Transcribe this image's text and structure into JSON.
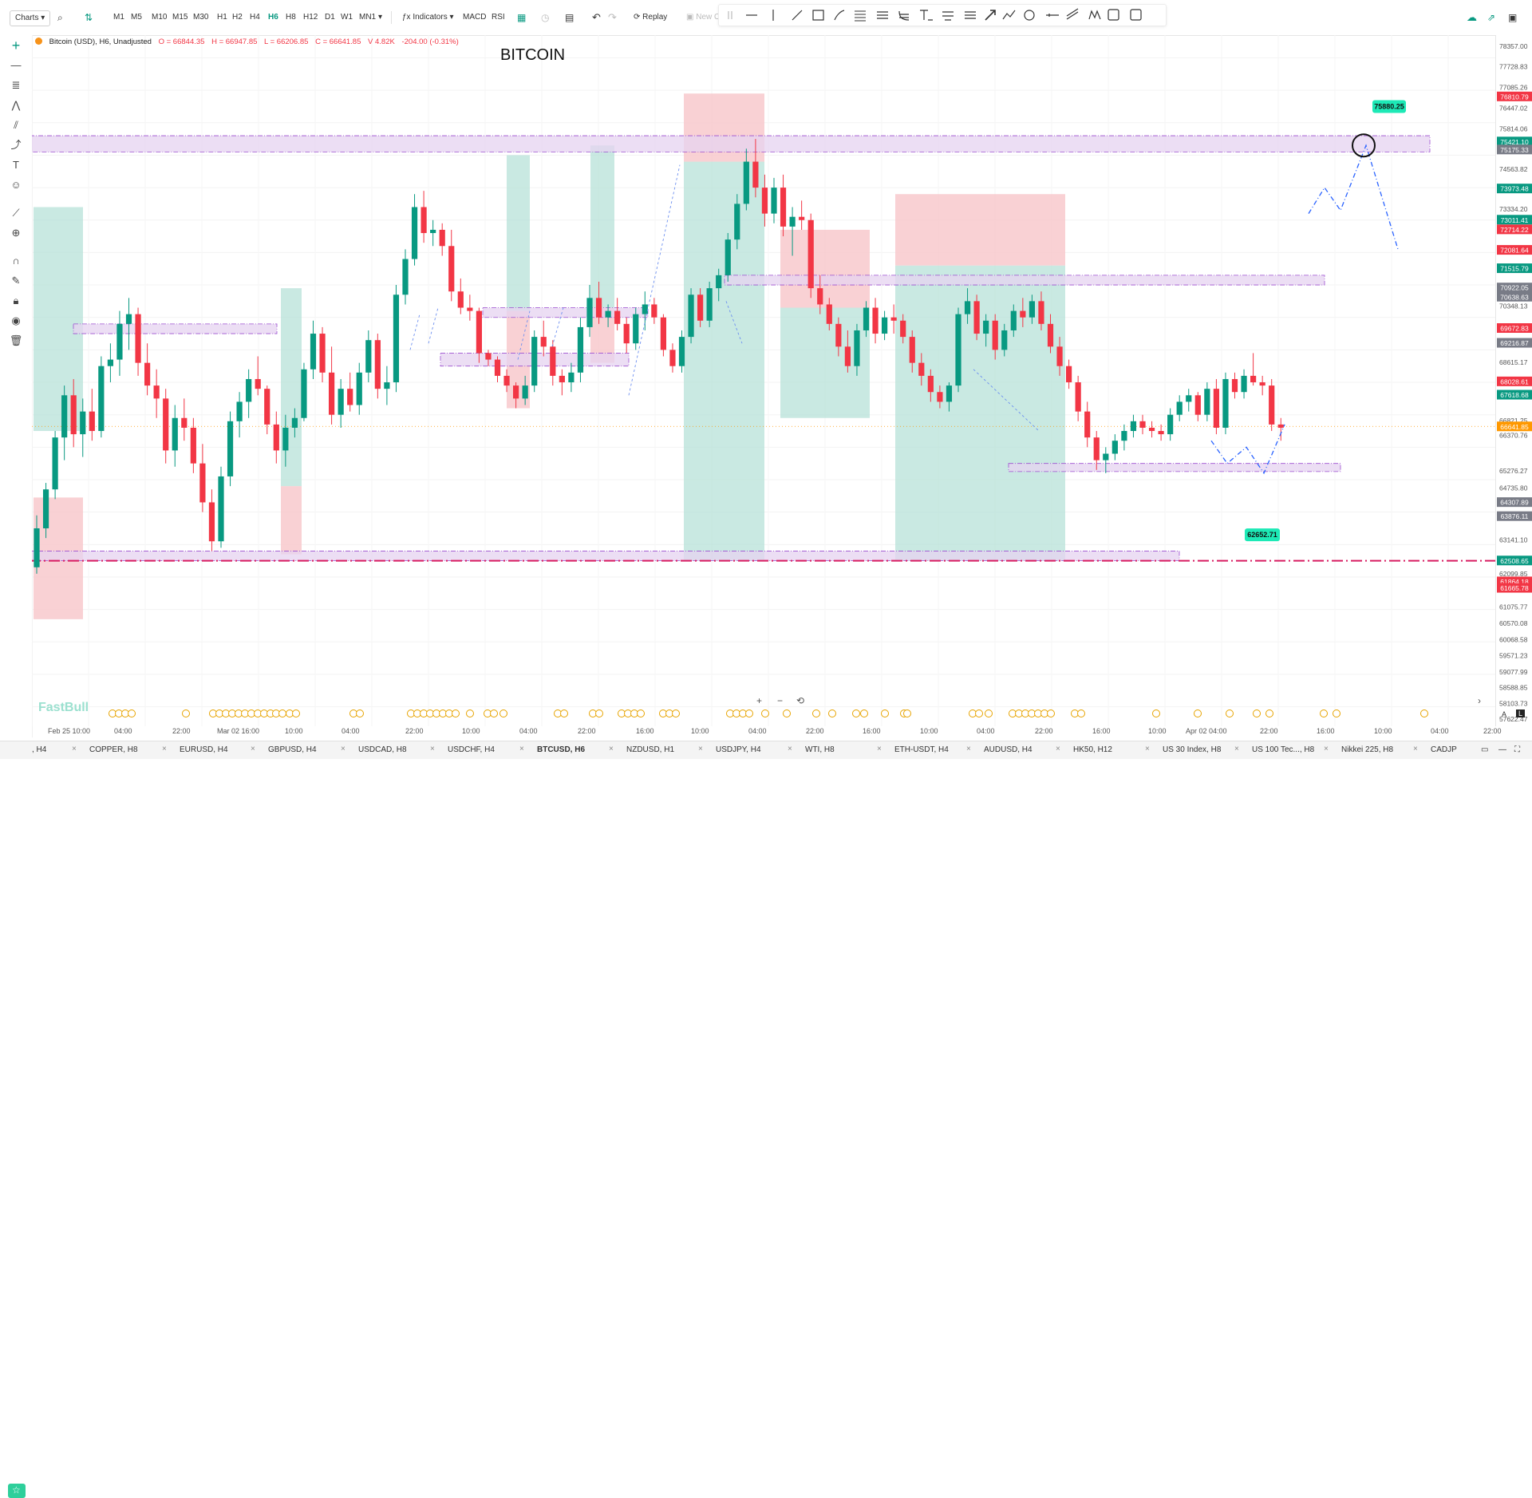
{
  "toolbar": {
    "charts_label": "Charts",
    "timeframes": [
      "M1",
      "M5",
      "M10",
      "M15",
      "M30",
      "H1",
      "H2",
      "H4",
      "H6",
      "H8",
      "H12",
      "D1",
      "W1",
      "MN1"
    ],
    "active_timeframe": "H6",
    "indicators_label": "Indicators",
    "macd_label": "MACD",
    "rsi_label": "RSI",
    "replay_label": "Replay",
    "new_label": "New O"
  },
  "legend": {
    "symbol": "Bitcoin (USD), H6, Unadjusted",
    "open": "O = 66844.35",
    "high": "H = 66947.85",
    "low": "L = 66206.85",
    "close": "C = 66641.85",
    "volume": "V 4.82K",
    "change": "-204.00 (-0.31%)"
  },
  "chart_title": "BITCOIN",
  "watermark": "FastBull",
  "annotations": {
    "target_label": "75880.25",
    "support_label": "62652.71"
  },
  "price_axis": {
    "labels": [
      "78357.00",
      "77728.83",
      "77085.26",
      "76447.02",
      "75814.06",
      "75175.33",
      "74563.82",
      "73334.20",
      "72081.64",
      "71515.79",
      "70348.13",
      "69672.83",
      "68615.17",
      "68028.61",
      "66821.25",
      "66370.76",
      "65276.27",
      "64735.80",
      "63141.10",
      "62099.85",
      "61075.77",
      "60570.08",
      "60068.58",
      "59571.23",
      "59077.99",
      "58588.85",
      "58103.73",
      "57622.47"
    ],
    "badges": [
      {
        "text": "76810.79",
        "color": "#f23645",
        "price": 76810.79
      },
      {
        "text": "75421.10",
        "color": "#089981",
        "price": 75421.1
      },
      {
        "text": "75175.33",
        "color": "#787b86",
        "price": 75175.33
      },
      {
        "text": "73973.48",
        "color": "#089981",
        "price": 73973.48
      },
      {
        "text": "73011.41",
        "color": "#089981",
        "price": 73011.41
      },
      {
        "text": "72714.22",
        "color": "#f23645",
        "price": 72714.22
      },
      {
        "text": "72081.64",
        "color": "#f23645",
        "price": 72081.64
      },
      {
        "text": "71515.79",
        "color": "#089981",
        "price": 71515.79
      },
      {
        "text": "70922.05",
        "color": "#787b86",
        "price": 70922.05
      },
      {
        "text": "70638.63",
        "color": "#787b86",
        "price": 70638.63
      },
      {
        "text": "69672.83",
        "color": "#f23645",
        "price": 69672.83
      },
      {
        "text": "69216.87",
        "color": "#787b86",
        "price": 69216.87
      },
      {
        "text": "68028.61",
        "color": "#f23645",
        "price": 68028.61
      },
      {
        "text": "67618.68",
        "color": "#089981",
        "price": 67618.68
      },
      {
        "text": "66641.85",
        "color": "#ff9800",
        "price": 66641.85
      },
      {
        "text": "64307.89",
        "color": "#787b86",
        "price": 64307.89
      },
      {
        "text": "63876.11",
        "color": "#787b86",
        "price": 63876.11
      },
      {
        "text": "62508.65",
        "color": "#089981",
        "price": 62508.65
      },
      {
        "text": "61864.18",
        "color": "#f23645",
        "price": 61864.18
      },
      {
        "text": "61665.78",
        "color": "#f23645",
        "price": 61665.78
      }
    ]
  },
  "time_axis": [
    "Feb 25 10:00",
    "04:00",
    "22:00",
    "Mar 02 16:00",
    "10:00",
    "04:00",
    "22:00",
    "10:00",
    "04:00",
    "22:00",
    "16:00",
    "10:00",
    "04:00",
    "22:00",
    "16:00",
    "10:00",
    "04:00",
    "22:00",
    "16:00",
    "10:00",
    "Apr 02 04:00",
    "22:00",
    "16:00",
    "10:00",
    "04:00",
    "22:00"
  ],
  "tabs": [
    {
      "label": ", H4"
    },
    {
      "label": "COPPER, H8"
    },
    {
      "label": "EURUSD, H4"
    },
    {
      "label": "GBPUSD, H4"
    },
    {
      "label": "USDCAD, H8"
    },
    {
      "label": "USDCHF, H4"
    },
    {
      "label": "BTCUSD, H6",
      "active": true
    },
    {
      "label": "NZDUSD, H1"
    },
    {
      "label": "USDJPY, H4"
    },
    {
      "label": "WTI, H8"
    },
    {
      "label": "ETH-USDT, H4"
    },
    {
      "label": "AUDUSD, H4"
    },
    {
      "label": "HK50, H12"
    },
    {
      "label": "US 30 Index, H8"
    },
    {
      "label": "US 100 Tec..., H8"
    },
    {
      "label": "Nikkei 225, H8"
    },
    {
      "label": "CADJP"
    }
  ],
  "chart_data": {
    "type": "candlestick",
    "title": "BITCOIN",
    "ylim": [
      57400,
      78700
    ],
    "up_color": "#089981",
    "down_color": "#f23645",
    "ohlc": [
      [
        62300,
        63900,
        62100,
        63500
      ],
      [
        63500,
        64900,
        63200,
        64700
      ],
      [
        64700,
        66500,
        64400,
        66300
      ],
      [
        66300,
        67900,
        65600,
        67600
      ],
      [
        67600,
        68100,
        66000,
        66400
      ],
      [
        66400,
        67500,
        65700,
        67100
      ],
      [
        67100,
        67800,
        66200,
        66500
      ],
      [
        66500,
        68800,
        66300,
        68500
      ],
      [
        68500,
        69200,
        68000,
        68700
      ],
      [
        68700,
        70200,
        68200,
        69800
      ],
      [
        69800,
        70600,
        69000,
        70100
      ],
      [
        70100,
        70300,
        68200,
        68600
      ],
      [
        68600,
        69200,
        67600,
        67900
      ],
      [
        67900,
        68400,
        66900,
        67500
      ],
      [
        67500,
        67800,
        65500,
        65900
      ],
      [
        65900,
        67300,
        65400,
        66900
      ],
      [
        66900,
        67500,
        66200,
        66600
      ],
      [
        66600,
        66900,
        65200,
        65500
      ],
      [
        65500,
        66100,
        64000,
        64300
      ],
      [
        64300,
        64700,
        62800,
        63100
      ],
      [
        63100,
        65400,
        62900,
        65100
      ],
      [
        65100,
        67100,
        64800,
        66800
      ],
      [
        66800,
        67700,
        66300,
        67400
      ],
      [
        67400,
        68400,
        66900,
        68100
      ],
      [
        68100,
        68800,
        67600,
        67800
      ],
      [
        67800,
        67900,
        66400,
        66700
      ],
      [
        66700,
        67100,
        65500,
        65900
      ],
      [
        65900,
        67000,
        65400,
        66600
      ],
      [
        66600,
        67200,
        66300,
        66900
      ],
      [
        66900,
        68600,
        66800,
        68400
      ],
      [
        68400,
        69900,
        68100,
        69500
      ],
      [
        69500,
        69700,
        68000,
        68300
      ],
      [
        68300,
        69100,
        66700,
        67000
      ],
      [
        67000,
        68100,
        66600,
        67800
      ],
      [
        67800,
        68300,
        67100,
        67300
      ],
      [
        67300,
        68600,
        67000,
        68300
      ],
      [
        68300,
        69600,
        68000,
        69300
      ],
      [
        69300,
        69500,
        67500,
        67800
      ],
      [
        67800,
        68500,
        67300,
        68000
      ],
      [
        68000,
        71000,
        67700,
        70700
      ],
      [
        70700,
        72100,
        70400,
        71800
      ],
      [
        71800,
        73800,
        71600,
        73400
      ],
      [
        73400,
        73900,
        72300,
        72600
      ],
      [
        72600,
        73000,
        72200,
        72700
      ],
      [
        72700,
        72900,
        71900,
        72200
      ],
      [
        72200,
        72700,
        70500,
        70800
      ],
      [
        70800,
        71200,
        70100,
        70300
      ],
      [
        70300,
        70700,
        69900,
        70200
      ],
      [
        70200,
        70300,
        68600,
        68900
      ],
      [
        68900,
        69000,
        68500,
        68700
      ],
      [
        68700,
        68800,
        68000,
        68200
      ],
      [
        68200,
        68400,
        67700,
        67900
      ],
      [
        67900,
        68000,
        67200,
        67500
      ],
      [
        67500,
        68200,
        67300,
        67900
      ],
      [
        67900,
        69600,
        67700,
        69400
      ],
      [
        69400,
        69900,
        68800,
        69100
      ],
      [
        69100,
        69300,
        67900,
        68200
      ],
      [
        68200,
        68400,
        67600,
        68000
      ],
      [
        68000,
        68600,
        67700,
        68300
      ],
      [
        68300,
        70000,
        68000,
        69700
      ],
      [
        69700,
        71000,
        69400,
        70600
      ],
      [
        70600,
        71100,
        69800,
        70000
      ],
      [
        70000,
        70400,
        69700,
        70200
      ],
      [
        70200,
        70600,
        69600,
        69800
      ],
      [
        69800,
        70000,
        68900,
        69200
      ],
      [
        69200,
        70300,
        69000,
        70100
      ],
      [
        70100,
        70800,
        69600,
        70400
      ],
      [
        70400,
        70600,
        69800,
        70000
      ],
      [
        70000,
        70100,
        68800,
        69000
      ],
      [
        69000,
        69200,
        68300,
        68500
      ],
      [
        68500,
        69600,
        68300,
        69400
      ],
      [
        69400,
        70900,
        69200,
        70700
      ],
      [
        70700,
        70900,
        69700,
        69900
      ],
      [
        69900,
        71100,
        69700,
        70900
      ],
      [
        70900,
        71500,
        70500,
        71300
      ],
      [
        71300,
        72600,
        71100,
        72400
      ],
      [
        72400,
        73800,
        72100,
        73500
      ],
      [
        73500,
        75200,
        73300,
        74800
      ],
      [
        74800,
        75500,
        73700,
        74000
      ],
      [
        74000,
        74400,
        72800,
        73200
      ],
      [
        73200,
        74300,
        72900,
        74000
      ],
      [
        74000,
        74400,
        72500,
        72800
      ],
      [
        72800,
        73400,
        71900,
        73100
      ],
      [
        73100,
        73600,
        72700,
        73000
      ],
      [
        73000,
        73200,
        70600,
        70900
      ],
      [
        70900,
        71300,
        70100,
        70400
      ],
      [
        70400,
        70600,
        69600,
        69800
      ],
      [
        69800,
        70000,
        68800,
        69100
      ],
      [
        69100,
        69600,
        68300,
        68500
      ],
      [
        68500,
        69800,
        68200,
        69600
      ],
      [
        69600,
        70500,
        69400,
        70300
      ],
      [
        70300,
        70600,
        69200,
        69500
      ],
      [
        69500,
        70200,
        69300,
        70000
      ],
      [
        70000,
        70400,
        69500,
        69900
      ],
      [
        69900,
        70100,
        69200,
        69400
      ],
      [
        69400,
        69600,
        68300,
        68600
      ],
      [
        68600,
        68900,
        67900,
        68200
      ],
      [
        68200,
        68400,
        67400,
        67700
      ],
      [
        67700,
        67900,
        67200,
        67400
      ],
      [
        67400,
        68000,
        67100,
        67900
      ],
      [
        67900,
        70300,
        67700,
        70100
      ],
      [
        70100,
        70900,
        69800,
        70500
      ],
      [
        70500,
        70700,
        69300,
        69500
      ],
      [
        69500,
        70100,
        69100,
        69900
      ],
      [
        69900,
        70100,
        68700,
        69000
      ],
      [
        69000,
        69800,
        68800,
        69600
      ],
      [
        69600,
        70400,
        69400,
        70200
      ],
      [
        70200,
        70600,
        69700,
        70000
      ],
      [
        70000,
        70700,
        69800,
        70500
      ],
      [
        70500,
        70800,
        69600,
        69800
      ],
      [
        69800,
        70100,
        68900,
        69100
      ],
      [
        69100,
        69400,
        68200,
        68500
      ],
      [
        68500,
        68700,
        67800,
        68000
      ],
      [
        68000,
        68200,
        66800,
        67100
      ],
      [
        67100,
        67400,
        66000,
        66300
      ],
      [
        66300,
        66500,
        65300,
        65600
      ],
      [
        65600,
        66000,
        65200,
        65800
      ],
      [
        65800,
        66400,
        65600,
        66200
      ],
      [
        66200,
        66700,
        65900,
        66500
      ],
      [
        66500,
        67000,
        66300,
        66800
      ],
      [
        66800,
        67000,
        66400,
        66600
      ],
      [
        66600,
        66800,
        66300,
        66500
      ],
      [
        66500,
        66700,
        66200,
        66400
      ],
      [
        66400,
        67200,
        66200,
        67000
      ],
      [
        67000,
        67600,
        66800,
        67400
      ],
      [
        67400,
        67800,
        67100,
        67600
      ],
      [
        67600,
        67700,
        66800,
        67000
      ],
      [
        67000,
        68000,
        66800,
        67800
      ],
      [
        67800,
        68100,
        66400,
        66600
      ],
      [
        66600,
        68300,
        66400,
        68100
      ],
      [
        68100,
        68300,
        67500,
        67700
      ],
      [
        67700,
        68400,
        67500,
        68200
      ],
      [
        68200,
        68900,
        67900,
        68000
      ],
      [
        68000,
        68200,
        67600,
        67900
      ],
      [
        67900,
        68100,
        66500,
        66700
      ],
      [
        66700,
        66900,
        66200,
        66600
      ]
    ]
  }
}
